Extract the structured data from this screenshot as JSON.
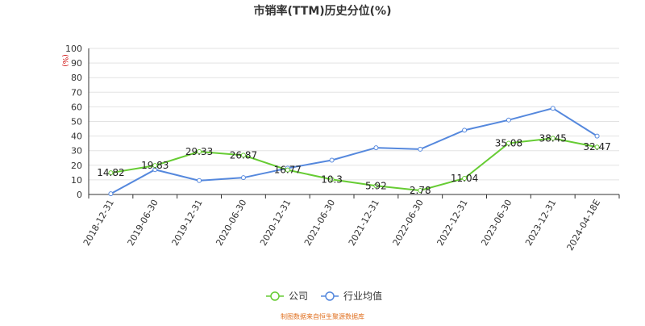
{
  "chart_data": {
    "type": "line",
    "title": "市销率(TTM)历史分位(%)",
    "y_unit": "(%)",
    "source": "制图数据来自恒生聚源数据库",
    "categories": [
      "2018-12-31",
      "2019-06-30",
      "2019-12-31",
      "2020-06-30",
      "2020-12-31",
      "2021-06-30",
      "2021-12-31",
      "2022-06-30",
      "2022-12-31",
      "2023-06-30",
      "2023-12-31",
      "2024-04-18E"
    ],
    "ylim": [
      0,
      100
    ],
    "yticks": [
      0,
      10,
      20,
      30,
      40,
      50,
      60,
      70,
      80,
      90,
      100
    ],
    "grid": true,
    "legend_position": "bottom-center",
    "series": [
      {
        "name": "公司",
        "color": "#66cc33",
        "values": [
          14.82,
          19.83,
          29.33,
          26.87,
          16.77,
          10.3,
          5.92,
          2.78,
          11.04,
          35.08,
          38.45,
          32.47
        ],
        "labels": [
          "14.82",
          "19.83",
          "29.33",
          "26.87",
          "16.77",
          "10.3",
          "5.92",
          "2.78",
          "11.04",
          "35.08",
          "38.45",
          "32.47"
        ]
      },
      {
        "name": "行业均值",
        "color": "#5588dd",
        "values": [
          0.5,
          17.0,
          9.5,
          11.5,
          18.0,
          23.5,
          32.0,
          31.0,
          44.0,
          51.0,
          59.0,
          40.0
        ]
      }
    ]
  }
}
